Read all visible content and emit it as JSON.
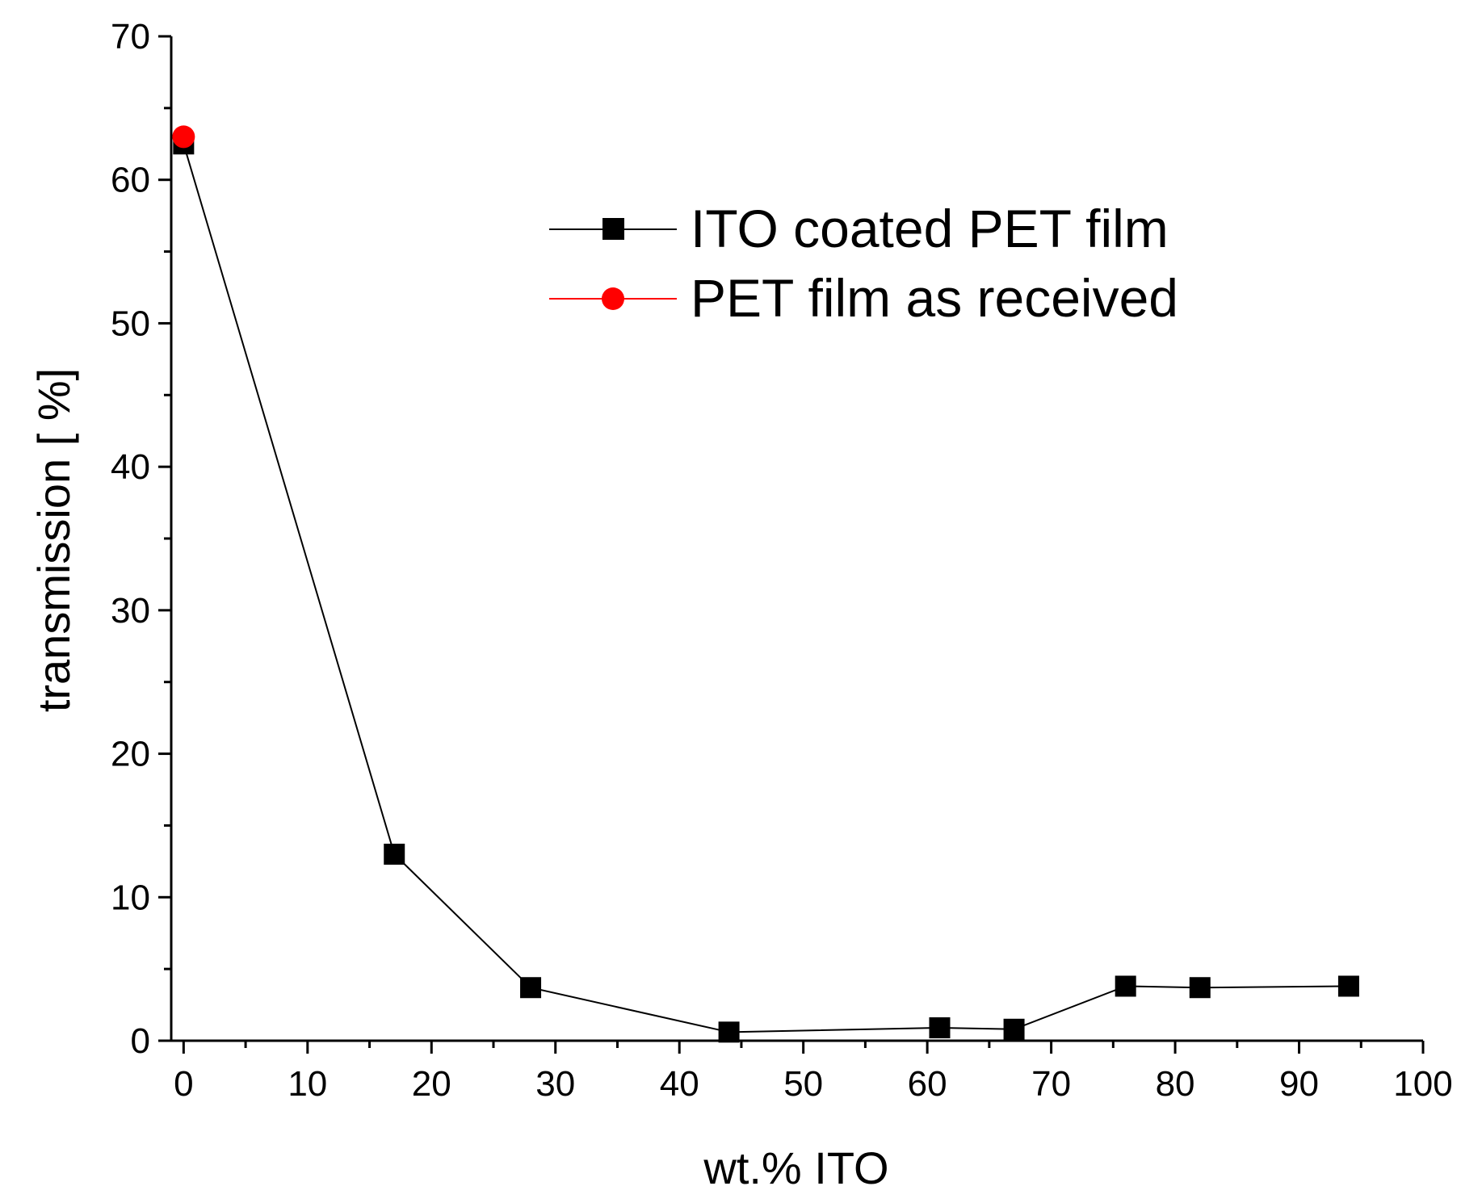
{
  "chart_data": {
    "type": "scatter",
    "title": "",
    "xlabel": "wt.% ITO",
    "ylabel": "transmission [ %]",
    "xlim": [
      -1,
      100
    ],
    "ylim": [
      0,
      70
    ],
    "x_ticks": [
      0,
      10,
      20,
      30,
      40,
      50,
      60,
      70,
      80,
      90,
      100
    ],
    "y_ticks": [
      0,
      10,
      20,
      30,
      40,
      50,
      60,
      70
    ],
    "grid": false,
    "legend_position": "top-right",
    "series": [
      {
        "name": "ITO coated PET film",
        "color": "#000000",
        "marker": "square",
        "line": true,
        "x": [
          0,
          17,
          28,
          44,
          61,
          67,
          76,
          82,
          94
        ],
        "y": [
          62.5,
          13.0,
          3.7,
          0.6,
          0.9,
          0.8,
          3.8,
          3.7,
          3.8
        ]
      },
      {
        "name": "PET film as received",
        "color": "#ff0000",
        "marker": "circle",
        "line": true,
        "x": [
          0
        ],
        "y": [
          63.0
        ]
      }
    ]
  }
}
